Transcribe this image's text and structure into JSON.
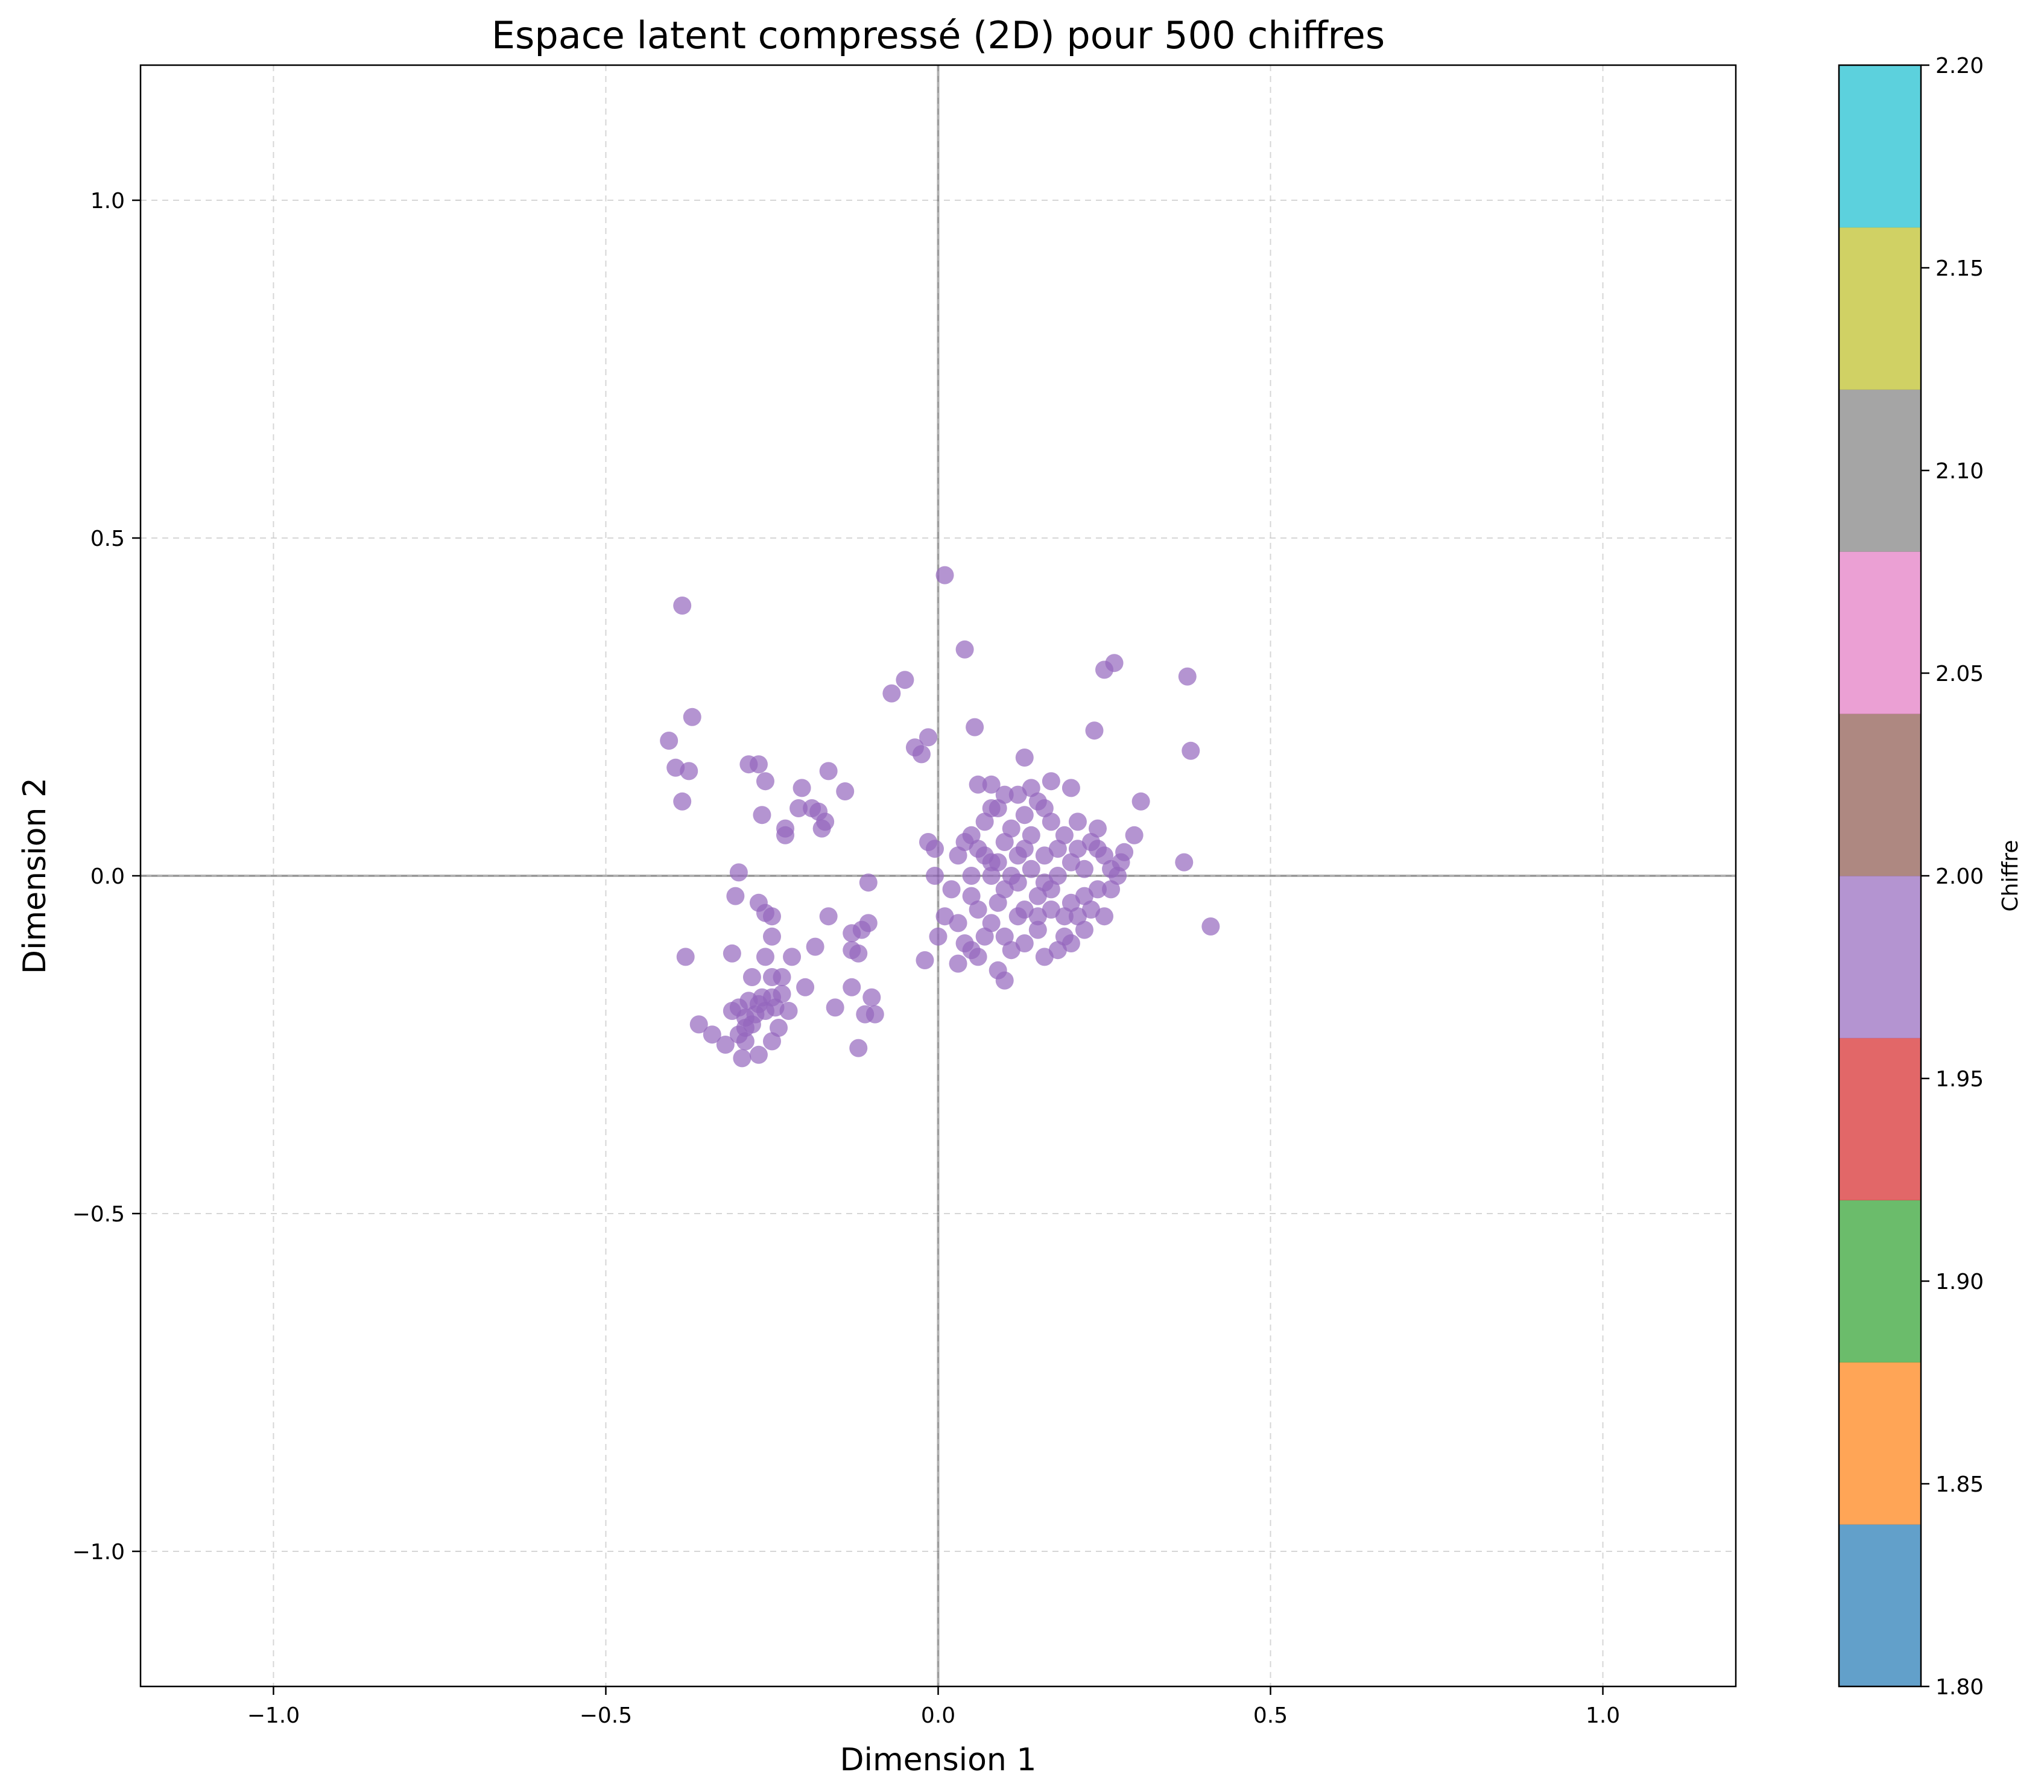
{
  "chart_data": {
    "type": "scatter",
    "title": "Espace latent compressé (2D) pour 500 chiffres",
    "xlabel": "Dimension 1",
    "ylabel": "Dimension 2",
    "xlim": [
      -1.2,
      1.2
    ],
    "ylim": [
      -1.2,
      1.2
    ],
    "grid": true,
    "x_ticks": [
      -1.0,
      -0.5,
      0.0,
      0.5,
      1.0
    ],
    "y_ticks": [
      -1.0,
      -0.5,
      0.0,
      0.5,
      1.0
    ],
    "x_tick_labels": [
      "−1.0",
      "−0.5",
      "0.0",
      "0.5",
      "1.0"
    ],
    "y_tick_labels": [
      "−1.0",
      "−0.5",
      "0.0",
      "0.5",
      "1.0"
    ],
    "reference_lines": {
      "x": 0.0,
      "y": 0.0
    },
    "point_color": "#9467bd",
    "point_opacity": 0.7,
    "points_count": 500,
    "series": [
      {
        "points": [
          [
            -0.385,
            0.4
          ],
          [
            0.01,
            0.445
          ],
          [
            0.04,
            0.335
          ],
          [
            0.265,
            0.315
          ],
          [
            0.25,
            0.305
          ],
          [
            0.375,
            0.295
          ],
          [
            -0.05,
            0.29
          ],
          [
            -0.07,
            0.27
          ],
          [
            -0.37,
            0.235
          ],
          [
            0.055,
            0.22
          ],
          [
            0.235,
            0.215
          ],
          [
            -0.015,
            0.205
          ],
          [
            -0.405,
            0.2
          ],
          [
            -0.035,
            0.19
          ],
          [
            -0.025,
            0.18
          ],
          [
            0.38,
            0.185
          ],
          [
            -0.395,
            0.16
          ],
          [
            -0.375,
            0.155
          ],
          [
            -0.285,
            0.165
          ],
          [
            -0.27,
            0.165
          ],
          [
            -0.165,
            0.155
          ],
          [
            -0.26,
            0.14
          ],
          [
            -0.205,
            0.13
          ],
          [
            -0.14,
            0.125
          ],
          [
            -0.385,
            0.11
          ],
          [
            -0.21,
            0.1
          ],
          [
            -0.19,
            0.1
          ],
          [
            -0.18,
            0.095
          ],
          [
            -0.17,
            0.08
          ],
          [
            -0.265,
            0.09
          ],
          [
            -0.23,
            0.07
          ],
          [
            -0.23,
            0.06
          ],
          [
            -0.175,
            0.07
          ],
          [
            0.13,
            0.175
          ],
          [
            0.305,
            0.11
          ],
          [
            0.2,
            0.13
          ],
          [
            0.17,
            0.14
          ],
          [
            0.08,
            0.135
          ],
          [
            0.06,
            0.135
          ],
          [
            0.295,
            0.06
          ],
          [
            -0.015,
            0.05
          ],
          [
            -0.005,
            0.04
          ],
          [
            0.28,
            0.035
          ],
          [
            0.275,
            0.02
          ],
          [
            0.37,
            0.02
          ],
          [
            -0.3,
            0.005
          ],
          [
            -0.105,
            -0.01
          ],
          [
            -0.005,
            0.0
          ],
          [
            0.27,
            0.0
          ],
          [
            0.41,
            -0.075
          ],
          [
            -0.305,
            -0.03
          ],
          [
            -0.27,
            -0.04
          ],
          [
            -0.26,
            -0.055
          ],
          [
            -0.25,
            -0.06
          ],
          [
            -0.165,
            -0.06
          ],
          [
            -0.105,
            -0.07
          ],
          [
            -0.115,
            -0.08
          ],
          [
            -0.13,
            -0.085
          ],
          [
            -0.25,
            -0.09
          ],
          [
            -0.185,
            -0.105
          ],
          [
            -0.31,
            -0.115
          ],
          [
            -0.26,
            -0.12
          ],
          [
            -0.38,
            -0.12
          ],
          [
            -0.13,
            -0.11
          ],
          [
            -0.12,
            -0.115
          ],
          [
            -0.22,
            -0.12
          ],
          [
            -0.02,
            -0.125
          ],
          [
            -0.28,
            -0.15
          ],
          [
            -0.25,
            -0.15
          ],
          [
            -0.235,
            -0.15
          ],
          [
            -0.2,
            -0.165
          ],
          [
            -0.13,
            -0.165
          ],
          [
            -0.25,
            -0.18
          ],
          [
            -0.265,
            -0.18
          ],
          [
            -0.1,
            -0.18
          ],
          [
            -0.155,
            -0.195
          ],
          [
            -0.225,
            -0.2
          ],
          [
            -0.11,
            -0.205
          ],
          [
            -0.095,
            -0.205
          ],
          [
            -0.29,
            -0.21
          ],
          [
            -0.3,
            -0.195
          ],
          [
            -0.31,
            -0.2
          ],
          [
            -0.28,
            -0.22
          ],
          [
            -0.24,
            -0.225
          ],
          [
            -0.36,
            -0.22
          ],
          [
            -0.34,
            -0.235
          ],
          [
            -0.3,
            -0.235
          ],
          [
            -0.29,
            -0.245
          ],
          [
            -0.25,
            -0.245
          ],
          [
            -0.32,
            -0.25
          ],
          [
            -0.295,
            -0.27
          ],
          [
            -0.27,
            -0.265
          ],
          [
            -0.12,
            -0.255
          ],
          [
            -0.27,
            -0.19
          ],
          [
            -0.26,
            -0.2
          ],
          [
            -0.275,
            -0.205
          ],
          [
            -0.285,
            -0.185
          ],
          [
            -0.245,
            -0.195
          ],
          [
            -0.235,
            -0.175
          ],
          [
            -0.29,
            -0.225
          ],
          [
            0.05,
            0.0
          ],
          [
            0.08,
            0.02
          ],
          [
            0.1,
            -0.02
          ],
          [
            0.12,
            0.03
          ],
          [
            0.14,
            0.01
          ],
          [
            0.16,
            -0.01
          ],
          [
            0.18,
            0.04
          ],
          [
            0.2,
            0.02
          ],
          [
            0.22,
            -0.03
          ],
          [
            0.06,
            -0.05
          ],
          [
            0.08,
            -0.07
          ],
          [
            0.1,
            -0.09
          ],
          [
            0.12,
            -0.06
          ],
          [
            0.15,
            -0.08
          ],
          [
            0.17,
            -0.05
          ],
          [
            0.19,
            -0.09
          ],
          [
            0.21,
            -0.06
          ],
          [
            0.24,
            -0.02
          ],
          [
            0.03,
            0.03
          ],
          [
            0.05,
            0.06
          ],
          [
            0.07,
            0.08
          ],
          [
            0.09,
            0.1
          ],
          [
            0.11,
            0.07
          ],
          [
            0.13,
            0.09
          ],
          [
            0.15,
            0.11
          ],
          [
            0.17,
            0.08
          ],
          [
            0.19,
            0.06
          ],
          [
            0.21,
            0.08
          ],
          [
            0.23,
            0.05
          ],
          [
            0.25,
            0.03
          ],
          [
            0.04,
            -0.1
          ],
          [
            0.06,
            -0.12
          ],
          [
            0.09,
            -0.14
          ],
          [
            0.1,
            -0.155
          ],
          [
            0.13,
            -0.1
          ],
          [
            0.16,
            -0.12
          ],
          [
            0.18,
            -0.11
          ],
          [
            0.2,
            -0.1
          ],
          [
            0.22,
            -0.08
          ],
          [
            0.25,
            -0.06
          ],
          [
            0.02,
            -0.02
          ],
          [
            0.01,
            -0.06
          ],
          [
            0.0,
            -0.09
          ],
          [
            0.03,
            -0.13
          ],
          [
            0.04,
            0.05
          ],
          [
            0.06,
            0.04
          ],
          [
            0.08,
            0.0
          ],
          [
            0.1,
            0.05
          ],
          [
            0.12,
            -0.01
          ],
          [
            0.14,
            0.06
          ],
          [
            0.16,
            0.03
          ],
          [
            0.18,
            0.0
          ],
          [
            0.2,
            -0.04
          ],
          [
            0.22,
            0.01
          ],
          [
            0.24,
            0.07
          ],
          [
            0.05,
            -0.03
          ],
          [
            0.07,
            -0.09
          ],
          [
            0.09,
            -0.04
          ],
          [
            0.11,
            -0.11
          ],
          [
            0.13,
            -0.05
          ],
          [
            0.15,
            -0.03
          ],
          [
            0.17,
            -0.02
          ],
          [
            0.19,
            -0.06
          ],
          [
            0.21,
            0.04
          ],
          [
            0.23,
            -0.05
          ],
          [
            0.07,
            0.03
          ],
          [
            0.09,
            0.02
          ],
          [
            0.11,
            0.0
          ],
          [
            0.13,
            0.04
          ],
          [
            0.15,
            -0.06
          ],
          [
            0.12,
            0.12
          ],
          [
            0.14,
            0.13
          ],
          [
            0.16,
            0.1
          ],
          [
            0.1,
            0.12
          ],
          [
            0.08,
            0.1
          ],
          [
            0.26,
            -0.02
          ],
          [
            0.26,
            0.01
          ],
          [
            0.24,
            0.04
          ],
          [
            0.03,
            -0.07
          ],
          [
            0.05,
            -0.11
          ]
        ]
      }
    ],
    "colorbar": {
      "label": "Chiffre",
      "min": 1.8,
      "max": 2.2,
      "ticks": [
        1.8,
        1.85,
        1.9,
        1.95,
        2.0,
        2.05,
        2.1,
        2.15,
        2.2
      ],
      "tick_labels": [
        "1.80",
        "1.85",
        "1.90",
        "1.95",
        "2.00",
        "2.05",
        "2.10",
        "2.15",
        "2.20"
      ],
      "colors": [
        "#1f77b4",
        "#ff7f0e",
        "#2ca02c",
        "#d62728",
        "#9467bd",
        "#8c564b",
        "#e377c2",
        "#7f7f7f",
        "#bcbd22",
        "#17becf"
      ],
      "opacity": 0.7
    }
  }
}
